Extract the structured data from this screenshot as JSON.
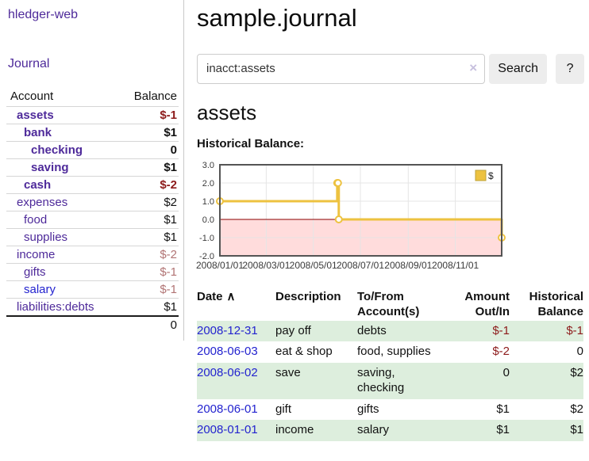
{
  "theme": {
    "link_purple": "#4e2a9a",
    "link_blue": "#2323cf",
    "negative": "#8d1b1b",
    "negative_muted": "#b17474",
    "row_green": "#ddeedd",
    "button_gray": "#ededed"
  },
  "sidebar": {
    "brand": "hledger-web",
    "journal_link": "Journal",
    "accounts_table": {
      "headers": {
        "account": "Account",
        "balance": "Balance"
      },
      "rows": [
        {
          "name": "assets",
          "balance": "$-1"
        },
        {
          "name": "bank",
          "balance": "$1"
        },
        {
          "name": "checking",
          "balance": "0"
        },
        {
          "name": "saving",
          "balance": "$1"
        },
        {
          "name": "cash",
          "balance": "$-2"
        },
        {
          "name": "expenses",
          "balance": "$2"
        },
        {
          "name": "food",
          "balance": "$1"
        },
        {
          "name": "supplies",
          "balance": "$1"
        },
        {
          "name": "income",
          "balance": "$-2"
        },
        {
          "name": "gifts",
          "balance": "$-1"
        },
        {
          "name": "salary",
          "balance": "$-1"
        },
        {
          "name": "liabilities:debts",
          "balance": "$1"
        }
      ],
      "total": "0"
    }
  },
  "main": {
    "title": "sample.journal",
    "search": {
      "value": "inacct:assets",
      "clear_icon": "×",
      "search_button": "Search",
      "help_button": "?"
    },
    "account_heading": "assets",
    "chart_heading": "Historical Balance:"
  },
  "chart_data": {
    "type": "line",
    "subtype": "step",
    "title": "Historical Balance",
    "xlabel": "",
    "ylabel": "",
    "xlim": [
      "2008-01-01",
      "2008-12-31"
    ],
    "ylim": [
      -2,
      3
    ],
    "grid": true,
    "legend_position": "top-right",
    "yticks": [
      {
        "value": 3,
        "label": "3.0"
      },
      {
        "value": 2,
        "label": "2.0"
      },
      {
        "value": 1,
        "label": "1.0"
      },
      {
        "value": 0,
        "label": "0.0"
      },
      {
        "value": -1,
        "label": "-1.0"
      },
      {
        "value": -2,
        "label": "-2.0"
      }
    ],
    "xticks": [
      {
        "date": "2008-01-01",
        "label": "2008/01/01"
      },
      {
        "date": "2008-03-01",
        "label": "2008/03/01"
      },
      {
        "date": "2008-05-01",
        "label": "2008/05/01"
      },
      {
        "date": "2008-07-01",
        "label": "2008/07/01"
      },
      {
        "date": "2008-09-01",
        "label": "2008/09/01"
      },
      {
        "date": "2008-11-01",
        "label": "2008/11/01"
      }
    ],
    "series": [
      {
        "name": "$",
        "points": [
          [
            "2008-01-01",
            1
          ],
          [
            "2008-06-01",
            2
          ],
          [
            "2008-06-02",
            2
          ],
          [
            "2008-06-03",
            0
          ],
          [
            "2008-12-31",
            -1
          ]
        ]
      }
    ],
    "colors": {
      "line": "#edc240",
      "marker_fill": "#ffffff",
      "negative_region": "#ffdcdc",
      "zero_line": "#8b0000",
      "grid": "#e5e5e5",
      "border": "#545454",
      "legend_box_border": "#bda23a"
    }
  },
  "table": {
    "headers": {
      "date": "Date",
      "sort_icon": "∧",
      "description": "Description",
      "account": "To/From Account(s)",
      "amount": "Amount Out/In",
      "balance": "Historical Balance"
    },
    "rows": [
      {
        "date": "2008-12-31",
        "description": "pay off",
        "accounts": "debts",
        "amount": "$-1",
        "balance": "$-1"
      },
      {
        "date": "2008-06-03",
        "description": "eat & shop",
        "accounts": "food, supplies",
        "amount": "$-2",
        "balance": "0"
      },
      {
        "date": "2008-06-02",
        "description": "save",
        "accounts": "saving,\nchecking",
        "amount": "0",
        "balance": "$2"
      },
      {
        "date": "2008-06-01",
        "description": "gift",
        "accounts": "gifts",
        "amount": "$1",
        "balance": "$2"
      },
      {
        "date": "2008-01-01",
        "description": "income",
        "accounts": "salary",
        "amount": "$1",
        "balance": "$1"
      }
    ]
  }
}
